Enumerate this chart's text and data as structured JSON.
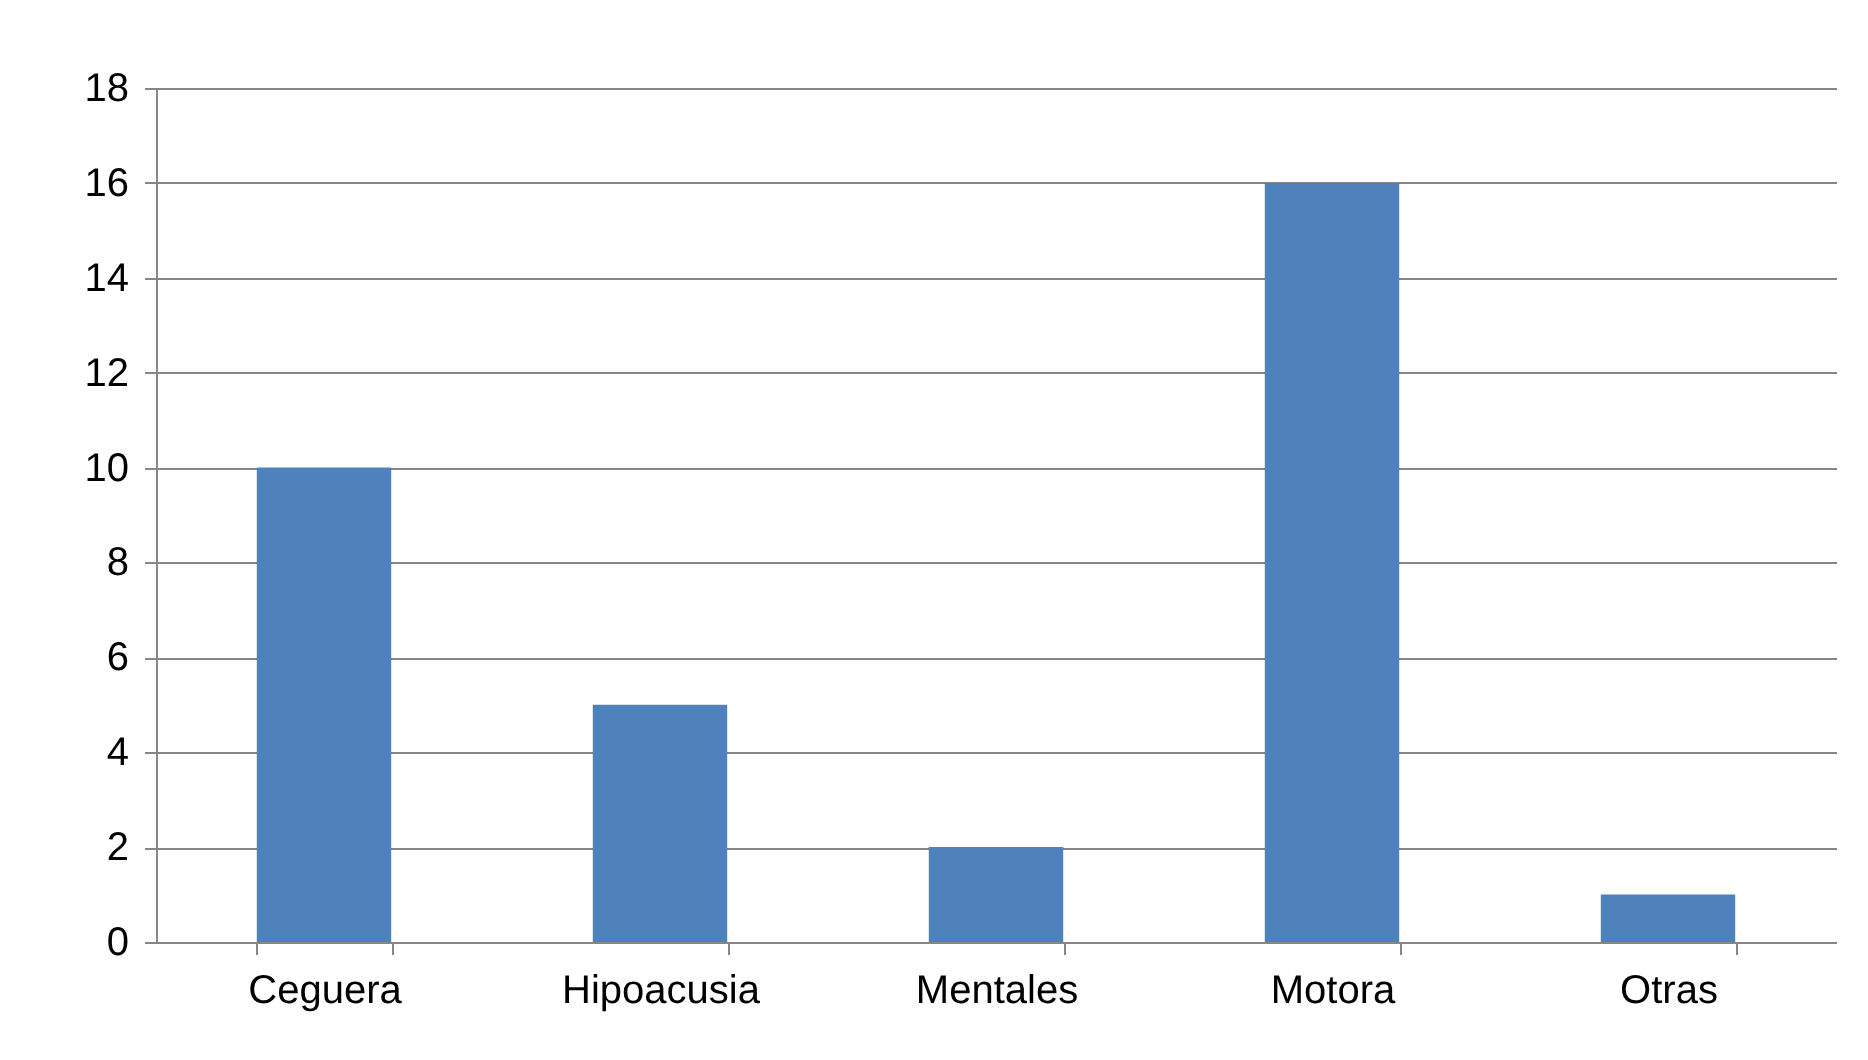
{
  "chart_data": {
    "type": "bar",
    "categories": [
      "Ceguera",
      "Hipoacusia",
      "Mentales",
      "Motora",
      "Otras"
    ],
    "values": [
      10,
      5,
      2,
      16,
      1
    ],
    "color": "#4f81bd",
    "ylim": [
      0,
      18
    ],
    "yticks": [
      0,
      2,
      4,
      6,
      8,
      10,
      12,
      14,
      16,
      18
    ],
    "grid": "y"
  }
}
